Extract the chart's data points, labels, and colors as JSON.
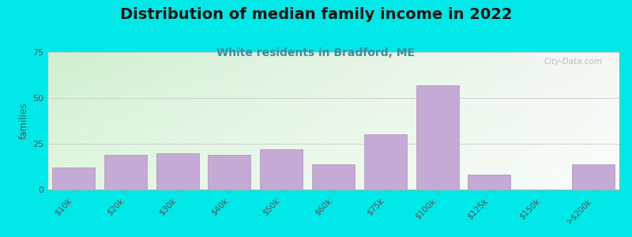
{
  "title": "Distribution of median family income in 2022",
  "subtitle": "White residents in Bradford, ME",
  "ylabel": "families",
  "categories": [
    "$10k",
    "$20k",
    "$30k",
    "$40k",
    "$50k",
    "$60k",
    "$75k",
    "$100k",
    "$125k",
    "$150k",
    ">$200k"
  ],
  "values": [
    12,
    19,
    20,
    19,
    22,
    14,
    30,
    57,
    8,
    0,
    14
  ],
  "bar_color": "#c4aad4",
  "bar_edge_color": "#b090c0",
  "background_outer": "#00e8e8",
  "title_fontsize": 14,
  "title_color": "#111111",
  "subtitle_fontsize": 10,
  "subtitle_color": "#3a8fa0",
  "ylabel_color": "#555555",
  "tick_color": "#555555",
  "ylim": [
    0,
    75
  ],
  "yticks": [
    0,
    25,
    50,
    75
  ],
  "grad_topleft": [
    0.82,
    0.94,
    0.82,
    1.0
  ],
  "grad_topright": [
    0.96,
    0.97,
    0.96,
    1.0
  ],
  "grad_botleft": [
    0.88,
    0.97,
    0.88,
    1.0
  ],
  "grad_botright": [
    0.98,
    0.99,
    0.98,
    1.0
  ],
  "watermark": "City-Data.com"
}
